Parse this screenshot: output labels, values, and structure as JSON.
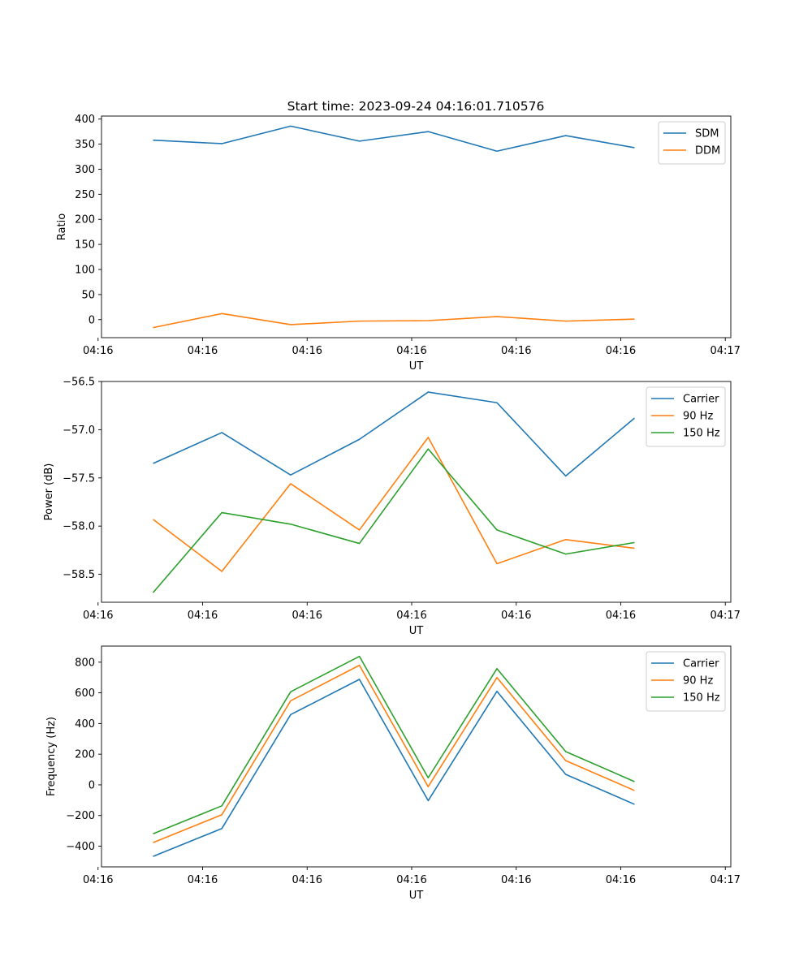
{
  "figure_title": "Start time: 2023-09-24 04:16:01.710576",
  "colors": {
    "blue": "#1f77b4",
    "orange": "#ff7f0e",
    "green": "#2ca02c"
  },
  "chart_data": [
    {
      "type": "line",
      "ylabel": "Ratio",
      "xlabel": "UT",
      "x": [
        1,
        2,
        3,
        4,
        5,
        6,
        7,
        8
      ],
      "xlim": [
        0.25,
        9.4
      ],
      "ylim": [
        -36,
        406
      ],
      "x_ticks": [
        0.2,
        1.72,
        3.24,
        4.76,
        6.28,
        7.8,
        9.32
      ],
      "x_tick_labels": [
        "04:16",
        "04:16",
        "04:16",
        "04:16",
        "04:16",
        "04:16",
        "04:17"
      ],
      "y_ticks": [
        0,
        50,
        100,
        150,
        200,
        250,
        300,
        350,
        400
      ],
      "y_tick_labels": [
        "0",
        "50",
        "100",
        "150",
        "200",
        "250",
        "300",
        "350",
        "400"
      ],
      "legend_position": "top-right",
      "series": [
        {
          "name": "SDM",
          "color": "#1f77b4",
          "values": [
            358,
            351,
            386,
            356,
            375,
            336,
            367,
            343
          ]
        },
        {
          "name": "DDM",
          "color": "#ff7f0e",
          "values": [
            -16,
            12,
            -10,
            -3,
            -2,
            6,
            -3,
            1
          ]
        }
      ]
    },
    {
      "type": "line",
      "ylabel": "Power (dB)",
      "xlabel": "UT",
      "x": [
        1,
        2,
        3,
        4,
        5,
        6,
        7,
        8
      ],
      "xlim": [
        0.25,
        9.4
      ],
      "ylim": [
        -58.79,
        -56.5
      ],
      "x_ticks": [
        0.2,
        1.72,
        3.24,
        4.76,
        6.28,
        7.8,
        9.32
      ],
      "x_tick_labels": [
        "04:16",
        "04:16",
        "04:16",
        "04:16",
        "04:16",
        "04:16",
        "04:17"
      ],
      "y_ticks": [
        -58.5,
        -58.0,
        -57.5,
        -57.0,
        -56.5
      ],
      "y_tick_labels": [
        "−58.5",
        "−58.0",
        "−57.5",
        "−57.0",
        "−56.5"
      ],
      "legend_position": "top-right",
      "series": [
        {
          "name": "Carrier",
          "color": "#1f77b4",
          "values": [
            -57.35,
            -57.03,
            -57.47,
            -57.1,
            -56.61,
            -56.72,
            -57.48,
            -56.88
          ]
        },
        {
          "name": "90 Hz",
          "color": "#ff7f0e",
          "values": [
            -57.93,
            -58.47,
            -57.56,
            -58.04,
            -57.08,
            -58.39,
            -58.14,
            -58.23
          ]
        },
        {
          "name": "150 Hz",
          "color": "#2ca02c",
          "values": [
            -58.69,
            -57.86,
            -57.98,
            -58.18,
            -57.2,
            -58.04,
            -58.29,
            -58.17
          ]
        }
      ]
    },
    {
      "type": "line",
      "ylabel": "Frequency (Hz)",
      "xlabel": "UT",
      "x": [
        1,
        2,
        3,
        4,
        5,
        6,
        7,
        8
      ],
      "xlim": [
        0.25,
        9.4
      ],
      "ylim": [
        -535,
        905
      ],
      "x_ticks": [
        0.2,
        1.72,
        3.24,
        4.76,
        6.28,
        7.8,
        9.32
      ],
      "x_tick_labels": [
        "04:16",
        "04:16",
        "04:16",
        "04:16",
        "04:16",
        "04:16",
        "04:17"
      ],
      "y_ticks": [
        -400,
        -200,
        0,
        200,
        400,
        600,
        800
      ],
      "y_tick_labels": [
        "−400",
        "−200",
        "0",
        "200",
        "400",
        "600",
        "800"
      ],
      "legend_position": "top-right",
      "series": [
        {
          "name": "Carrier",
          "color": "#1f77b4",
          "values": [
            -467,
            -285,
            458,
            688,
            -103,
            610,
            68,
            -127
          ]
        },
        {
          "name": "90 Hz",
          "color": "#ff7f0e",
          "values": [
            -377,
            -195,
            548,
            780,
            -12,
            700,
            158,
            -37
          ]
        },
        {
          "name": "150 Hz",
          "color": "#2ca02c",
          "values": [
            -319,
            -137,
            607,
            838,
            46,
            758,
            217,
            21
          ]
        }
      ]
    }
  ]
}
